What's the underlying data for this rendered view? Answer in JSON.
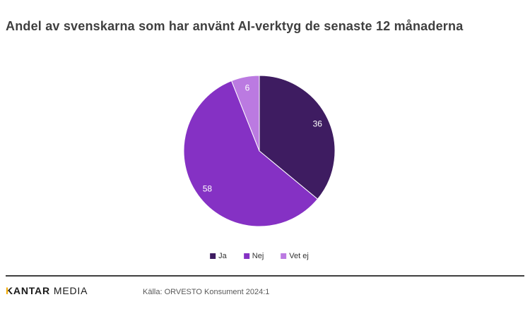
{
  "header": {
    "title": "Andel av svenskarna som har använt AI-verktyg de senaste 12 månaderna"
  },
  "chart_data": {
    "type": "pie",
    "labels": [
      "Ja",
      "Nej",
      "Vet ej"
    ],
    "values": [
      36,
      58,
      6
    ],
    "colors": [
      "#3e1c61",
      "#8531c4",
      "#bb7ae1"
    ],
    "value_label_color": "#ffffff",
    "start_angle_deg": 0,
    "direction": "clockwise",
    "legend_position": "bottom",
    "slice_border_color": "#ffffff"
  },
  "footer": {
    "logo_k": "K",
    "logo_antar": "ANTAR",
    "logo_media": "MEDIA",
    "source": "Källa: ORVESTO Konsument 2024:1",
    "accent_color": "#f2a900",
    "rule_color": "#3f3f3f"
  }
}
